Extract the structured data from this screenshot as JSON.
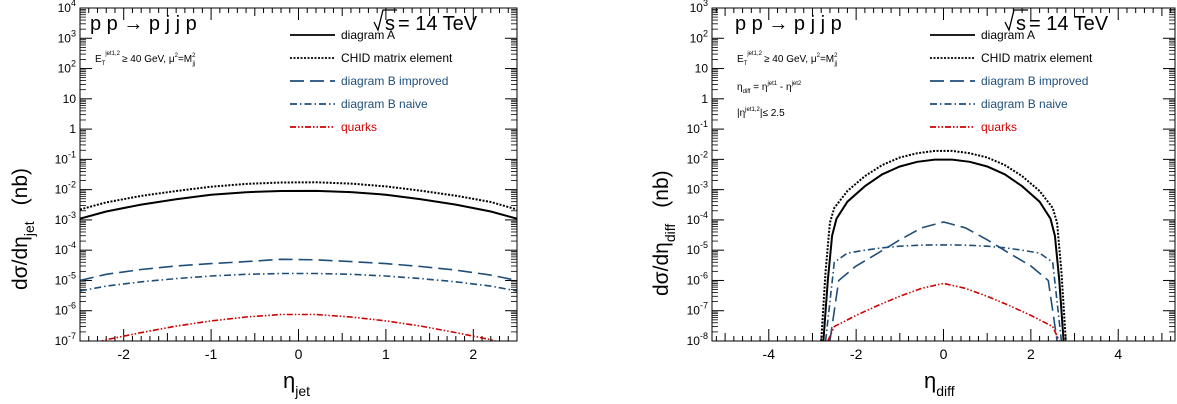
{
  "chart_data": [
    {
      "type": "line",
      "process_label": "p p → p j j p",
      "energy_label": "= 14 TeV",
      "energy_symbol": "s",
      "cut_label_1": "E_T^jet1,2 ≥ 40 GeV,   μ²=M²_jj",
      "xlabel": "η_jet",
      "ylabel": "dσ/dη_jet   (nb)",
      "xlim": [
        -2.5,
        2.5
      ],
      "ylim": [
        1e-07,
        10000
      ],
      "yscale": "log",
      "xticks": [
        -2,
        -1,
        0,
        1,
        2
      ],
      "legend": "top-right",
      "series": [
        {
          "name": "diagram A",
          "color": "#000000",
          "dash": "solid",
          "x": [
            -2.5,
            -2.2,
            -1.8,
            -1.4,
            -1.0,
            -0.6,
            -0.2,
            0.2,
            0.6,
            1.0,
            1.4,
            1.8,
            2.2,
            2.5
          ],
          "y": [
            0.0011,
            0.0019,
            0.0032,
            0.0048,
            0.0068,
            0.0082,
            0.009,
            0.0091,
            0.0083,
            0.0068,
            0.0048,
            0.0032,
            0.0019,
            0.0011
          ]
        },
        {
          "name": "CHID matrix element",
          "color": "#000000",
          "dash": "dotted",
          "x": [
            -2.5,
            -2.2,
            -1.8,
            -1.4,
            -1.0,
            -0.6,
            -0.2,
            0.2,
            0.6,
            1.0,
            1.4,
            1.8,
            2.2,
            2.5
          ],
          "y": [
            0.0022,
            0.0038,
            0.0062,
            0.009,
            0.0125,
            0.0155,
            0.0172,
            0.0175,
            0.0158,
            0.0128,
            0.0092,
            0.0063,
            0.0039,
            0.0022
          ]
        },
        {
          "name": "diagram B improved",
          "color": "#1f4e79",
          "dash": "longdash",
          "x": [
            -2.5,
            -2.2,
            -1.8,
            -1.4,
            -1.0,
            -0.6,
            -0.2,
            0.2,
            0.6,
            1.0,
            1.4,
            1.8,
            2.2,
            2.5
          ],
          "y": [
            1e-05,
            1.6e-05,
            2.3e-05,
            3e-05,
            3.6e-05,
            4.2e-05,
            5e-05,
            4.8e-05,
            4.2e-05,
            3.6e-05,
            2.9e-05,
            2.2e-05,
            1.5e-05,
            1e-05
          ]
        },
        {
          "name": "diagram B naive",
          "color": "#1f4e79",
          "dash": "dashdot",
          "x": [
            -2.5,
            -2.2,
            -1.8,
            -1.4,
            -1.0,
            -0.6,
            -0.2,
            0.2,
            0.6,
            1.0,
            1.4,
            1.8,
            2.2,
            2.5
          ],
          "y": [
            4.5e-06,
            6.5e-06,
            9e-06,
            1.15e-05,
            1.4e-05,
            1.6e-05,
            1.7e-05,
            1.7e-05,
            1.6e-05,
            1.4e-05,
            1.15e-05,
            9e-06,
            6.5e-06,
            4.5e-06
          ]
        },
        {
          "name": "quarks",
          "color": "#cc0000",
          "dash": "dashdotdot",
          "x": [
            -2.5,
            -2.2,
            -1.8,
            -1.4,
            -1.0,
            -0.6,
            -0.2,
            0.2,
            0.6,
            1.0,
            1.4,
            1.8,
            2.2,
            2.5
          ],
          "y": [
            6e-08,
            1.1e-07,
            1.9e-07,
            3.1e-07,
            4.6e-07,
            6.2e-07,
            7.5e-07,
            7.5e-07,
            6.2e-07,
            4.6e-07,
            3.1e-07,
            1.9e-07,
            1.1e-07,
            6e-08
          ]
        }
      ]
    },
    {
      "type": "line",
      "process_label": "p p → p j j p",
      "energy_label": "= 14 TeV",
      "energy_symbol": "s",
      "cut_label_1": "E_T^jet1,2 ≥ 40 GeV,   μ²=M²_jj",
      "cut_label_2": "η_diff = η^jet1 - η^jet2",
      "cut_label_3": "|η^jet1,2| ≤ 2.5",
      "xlabel": "η_diff",
      "ylabel": "dσ/dη_diff   (nb)",
      "xlim": [
        -5.3,
        5.3
      ],
      "ylim": [
        1e-08,
        1000
      ],
      "yscale": "log",
      "xticks": [
        -4,
        -2,
        0,
        2,
        4
      ],
      "legend": "top-right",
      "series": [
        {
          "name": "diagram A",
          "color": "#000000",
          "dash": "solid",
          "x": [
            -2.75,
            -2.65,
            -2.55,
            -2.45,
            -2.2,
            -1.8,
            -1.4,
            -1.0,
            -0.6,
            -0.2,
            0.2,
            0.6,
            1.0,
            1.4,
            1.8,
            2.2,
            2.45,
            2.55,
            2.65,
            2.75
          ],
          "y": [
            1e-08,
            1e-06,
            3e-05,
            0.00011,
            0.0004,
            0.0013,
            0.0032,
            0.0058,
            0.0083,
            0.0098,
            0.0098,
            0.0083,
            0.0058,
            0.0032,
            0.0013,
            0.0004,
            0.00011,
            3e-05,
            1e-06,
            1e-08
          ]
        },
        {
          "name": "CHID matrix element",
          "color": "#000000",
          "dash": "dotted",
          "x": [
            -2.8,
            -2.7,
            -2.6,
            -2.5,
            -2.2,
            -1.8,
            -1.4,
            -1.0,
            -0.6,
            -0.2,
            0.2,
            0.6,
            1.0,
            1.4,
            1.8,
            2.2,
            2.5,
            2.6,
            2.7,
            2.8
          ],
          "y": [
            1e-08,
            2e-06,
            8e-05,
            0.00025,
            0.0009,
            0.0028,
            0.0065,
            0.0115,
            0.016,
            0.019,
            0.019,
            0.016,
            0.0115,
            0.0065,
            0.0028,
            0.0009,
            0.00025,
            8e-05,
            2e-06,
            1e-08
          ]
        },
        {
          "name": "diagram B improved",
          "color": "#1f4e79",
          "dash": "longdash",
          "x": [
            -2.6,
            -2.4,
            -2.0,
            -1.5,
            -1.0,
            -0.5,
            0.0,
            0.5,
            1.0,
            1.5,
            2.0,
            2.4,
            2.6
          ],
          "y": [
            1e-08,
            1e-06,
            3e-06,
            8e-06,
            2.2e-05,
            5.5e-05,
            8.5e-05,
            5.5e-05,
            2.2e-05,
            8e-06,
            3e-06,
            1e-06,
            1e-08
          ]
        },
        {
          "name": "diagram B naive",
          "color": "#1f4e79",
          "dash": "dashdot",
          "x": [
            -2.7,
            -2.5,
            -2.2,
            -1.8,
            -1.4,
            -1.0,
            -0.6,
            -0.2,
            0.2,
            0.6,
            1.0,
            1.4,
            1.8,
            2.2,
            2.5,
            2.7
          ],
          "y": [
            1e-08,
            4e-06,
            8e-06,
            1e-05,
            1.2e-05,
            1.35e-05,
            1.45e-05,
            1.5e-05,
            1.5e-05,
            1.45e-05,
            1.35e-05,
            1.2e-05,
            1e-05,
            8e-06,
            4e-06,
            1e-08
          ]
        },
        {
          "name": "quarks",
          "color": "#cc0000",
          "dash": "dashdotdot",
          "x": [
            -2.65,
            -2.5,
            -2.0,
            -1.5,
            -1.0,
            -0.5,
            0.0,
            0.5,
            1.0,
            1.5,
            2.0,
            2.5,
            2.65
          ],
          "y": [
            1e-08,
            3e-08,
            7e-08,
            1.5e-07,
            3e-07,
            5.5e-07,
            8e-07,
            5.5e-07,
            3e-07,
            1.5e-07,
            7e-08,
            3e-08,
            1e-08
          ]
        }
      ]
    }
  ]
}
